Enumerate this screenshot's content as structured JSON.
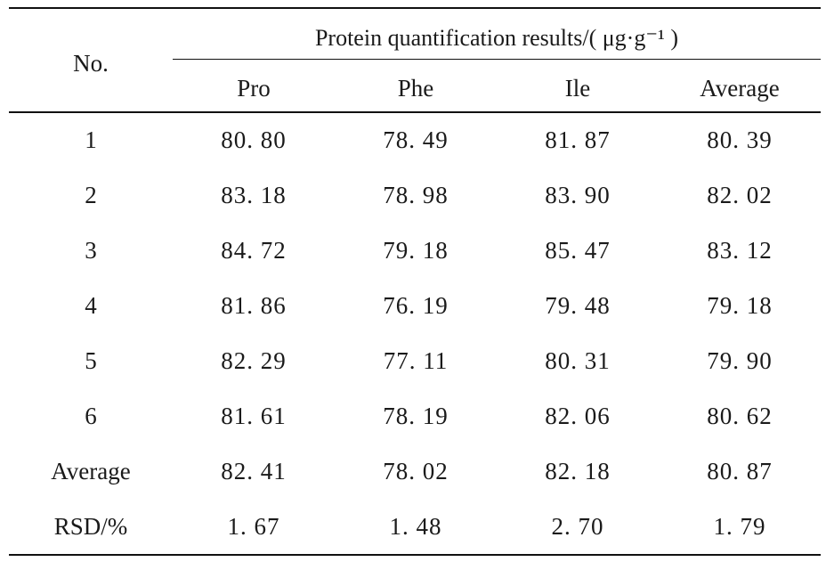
{
  "table": {
    "group_header": "Protein quantification results/( μg·g⁻¹ )",
    "row_header": "No.",
    "columns": [
      "Pro",
      "Phe",
      "Ile",
      "Average"
    ],
    "rows": [
      {
        "label": "1",
        "values": [
          "80. 80",
          "78. 49",
          "81. 87",
          "80. 39"
        ]
      },
      {
        "label": "2",
        "values": [
          "83. 18",
          "78. 98",
          "83. 90",
          "82. 02"
        ]
      },
      {
        "label": "3",
        "values": [
          "84. 72",
          "79. 18",
          "85. 47",
          "83. 12"
        ]
      },
      {
        "label": "4",
        "values": [
          "81. 86",
          "76. 19",
          "79. 48",
          "79. 18"
        ]
      },
      {
        "label": "5",
        "values": [
          "82. 29",
          "77. 11",
          "80. 31",
          "79. 90"
        ]
      },
      {
        "label": "6",
        "values": [
          "81. 61",
          "78. 19",
          "82. 06",
          "80. 62"
        ]
      },
      {
        "label": "Average",
        "values": [
          "82. 41",
          "78. 02",
          "82. 18",
          "80. 87"
        ]
      },
      {
        "label": "RSD/%",
        "values": [
          "1. 67",
          "1. 48",
          "2. 70",
          "1. 79"
        ]
      }
    ]
  }
}
